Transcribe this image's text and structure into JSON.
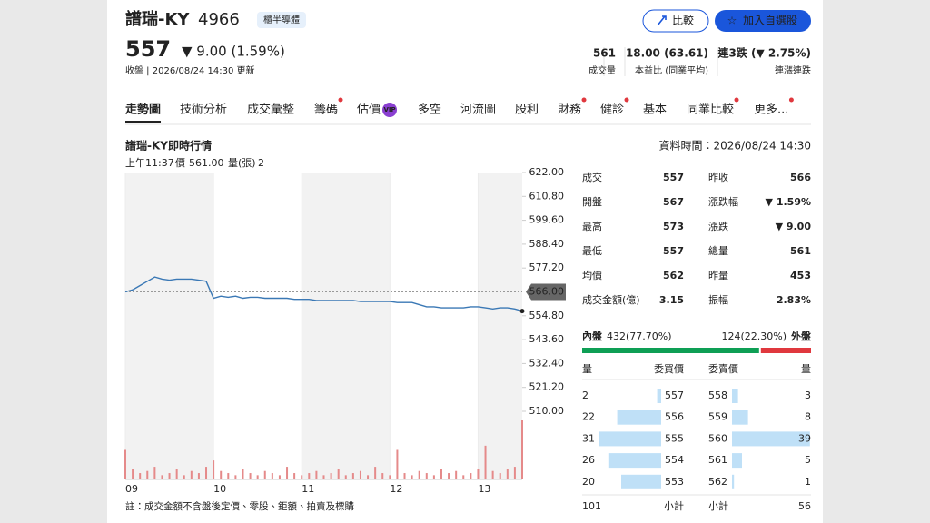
{
  "header": {
    "name": "譜瑞-KY",
    "code": "4966",
    "badge": "櫃半導體",
    "buttons": [
      "比較",
      "加入自選股"
    ]
  },
  "quote": {
    "price": "557",
    "change": "▼ 9.00 (1.59%)",
    "status": "收盤 | 2026/08/24 14:30 更新",
    "stats": [
      {
        "value": "561",
        "label": "成交量"
      },
      {
        "value": "18.00 (63.61)",
        "label": "本益比 (同業平均)"
      },
      {
        "value": "連3跌 (▼ 2.75%)",
        "label": "連漲連跌",
        "color": "#0e9f55"
      }
    ]
  },
  "tabs": [
    {
      "label": "走勢圖",
      "active": true
    },
    {
      "label": "技術分析"
    },
    {
      "label": "成交彙整"
    },
    {
      "label": "籌碼",
      "dot": true
    },
    {
      "label": "估價",
      "badge": "VIP"
    },
    {
      "label": "多空"
    },
    {
      "label": "河流圖"
    },
    {
      "label": "股利"
    },
    {
      "label": "財務",
      "dot": true
    },
    {
      "label": "健診",
      "dot": true
    },
    {
      "label": "基本"
    },
    {
      "label": "同業比較",
      "dot": true
    },
    {
      "label": "更多...",
      "dot": true
    }
  ],
  "panel": {
    "title": "譜瑞-KY即時行情",
    "time": "資料時間：2026/08/24 14:30",
    "cursor": [
      "上午11:37",
      "價",
      "561.00",
      "量(張)",
      "2"
    ]
  },
  "chart_data": {
    "type": "line",
    "color": "#3a78b5",
    "volume_color": "#e58a8a",
    "x": [
      0,
      5,
      10,
      15,
      20,
      25,
      30,
      35,
      40,
      45,
      50,
      55,
      60,
      65,
      70,
      75,
      80,
      85,
      90,
      95,
      100,
      105,
      110,
      115,
      120,
      125,
      130,
      135,
      140,
      145,
      150,
      155,
      160,
      165,
      170,
      175,
      180,
      185,
      190,
      195,
      200,
      205,
      210,
      215,
      220,
      225,
      230,
      235,
      240,
      245,
      250,
      255,
      260,
      265,
      270
    ],
    "values": [
      566,
      567,
      569,
      571,
      573,
      572,
      571.5,
      572,
      572,
      572,
      571.5,
      571,
      563,
      564,
      563.5,
      564,
      563,
      563.5,
      563.5,
      563,
      563,
      563,
      563,
      562.5,
      562.5,
      562.5,
      562,
      562,
      562,
      562,
      562,
      562,
      561.5,
      561.5,
      561.5,
      561.5,
      561.5,
      561,
      561,
      561,
      560,
      559,
      559,
      558.5,
      558.5,
      558.5,
      558.5,
      559,
      559,
      558.5,
      558,
      558.5,
      558.5,
      558,
      557
    ],
    "volumes": [
      14,
      5,
      3,
      4,
      6,
      2,
      3,
      5,
      2,
      4,
      3,
      6,
      9,
      4,
      3,
      2,
      5,
      3,
      2,
      4,
      3,
      2,
      6,
      3,
      2,
      3,
      4,
      2,
      3,
      5,
      2,
      3,
      4,
      2,
      6,
      3,
      2,
      14,
      3,
      2,
      4,
      3,
      2,
      5,
      3,
      4,
      2,
      3,
      5,
      16,
      4,
      3,
      5,
      6,
      28
    ],
    "xlim": [
      0,
      270
    ],
    "xticks": [
      {
        "value": 0,
        "label": "09"
      },
      {
        "value": 60,
        "label": "10"
      },
      {
        "value": 120,
        "label": "11"
      },
      {
        "value": 180,
        "label": "12"
      },
      {
        "value": 240,
        "label": "13"
      }
    ],
    "ylim": [
      510,
      622
    ],
    "yticks": [
      {
        "value": 622,
        "label": "622.00"
      },
      {
        "value": 610.8,
        "label": "610.80"
      },
      {
        "value": 599.6,
        "label": "599.60"
      },
      {
        "value": 588.4,
        "label": "588.40"
      },
      {
        "value": 577.2,
        "label": "577.20"
      },
      {
        "value": 554.8,
        "label": "554.80"
      },
      {
        "value": 543.6,
        "label": "543.60"
      },
      {
        "value": 532.4,
        "label": "532.40"
      },
      {
        "value": 521.2,
        "label": "521.20"
      },
      {
        "value": 510,
        "label": "510.00"
      }
    ],
    "reference": {
      "value": 566,
      "label": "566.00"
    }
  },
  "summary": [
    {
      "label": "成交",
      "value": "557",
      "color": "#0e9f55"
    },
    {
      "label": "昨收",
      "value": "566"
    },
    {
      "label": "開盤",
      "value": "567",
      "color": "#e0383e"
    },
    {
      "label": "漲跌幅",
      "value": "▼ 1.59%",
      "color": "#0e9f55"
    },
    {
      "label": "最高",
      "value": "573",
      "color": "#e0383e"
    },
    {
      "label": "漲跌",
      "value": "▼ 9.00",
      "color": "#0e9f55"
    },
    {
      "label": "最低",
      "value": "557",
      "color": "#0e9f55"
    },
    {
      "label": "總量",
      "value": "561"
    },
    {
      "label": "均價",
      "value": "562"
    },
    {
      "label": "昨量",
      "value": "453"
    },
    {
      "label": "成交金額(億)",
      "value": "3.15"
    },
    {
      "label": "振幅",
      "value": "2.83%"
    }
  ],
  "flow": {
    "inner_label": "內盤",
    "inner_text": "432(77.70%)",
    "inner_percent": 77.7,
    "outer_text": "124(22.30%)",
    "outer_percent": 22.3,
    "outer_label": "外盤"
  },
  "orderbook": {
    "headers": [
      "量",
      "委買價",
      "委賣價",
      "量"
    ],
    "bids": [
      {
        "qty": 2,
        "price": "557"
      },
      {
        "qty": 22,
        "price": "556"
      },
      {
        "qty": 31,
        "price": "555"
      },
      {
        "qty": 26,
        "price": "554"
      },
      {
        "qty": 20,
        "price": "553"
      }
    ],
    "asks": [
      {
        "price": "558",
        "qty": 3
      },
      {
        "price": "559",
        "qty": 8
      },
      {
        "price": "560",
        "qty": 39
      },
      {
        "price": "561",
        "qty": 5
      },
      {
        "price": "562",
        "qty": 1
      }
    ],
    "total_label": "小計",
    "bid_total": 101,
    "ask_total": 56
  },
  "note": "註：成交金額不含盤後定價、零股、鉅額、拍賣及標購"
}
